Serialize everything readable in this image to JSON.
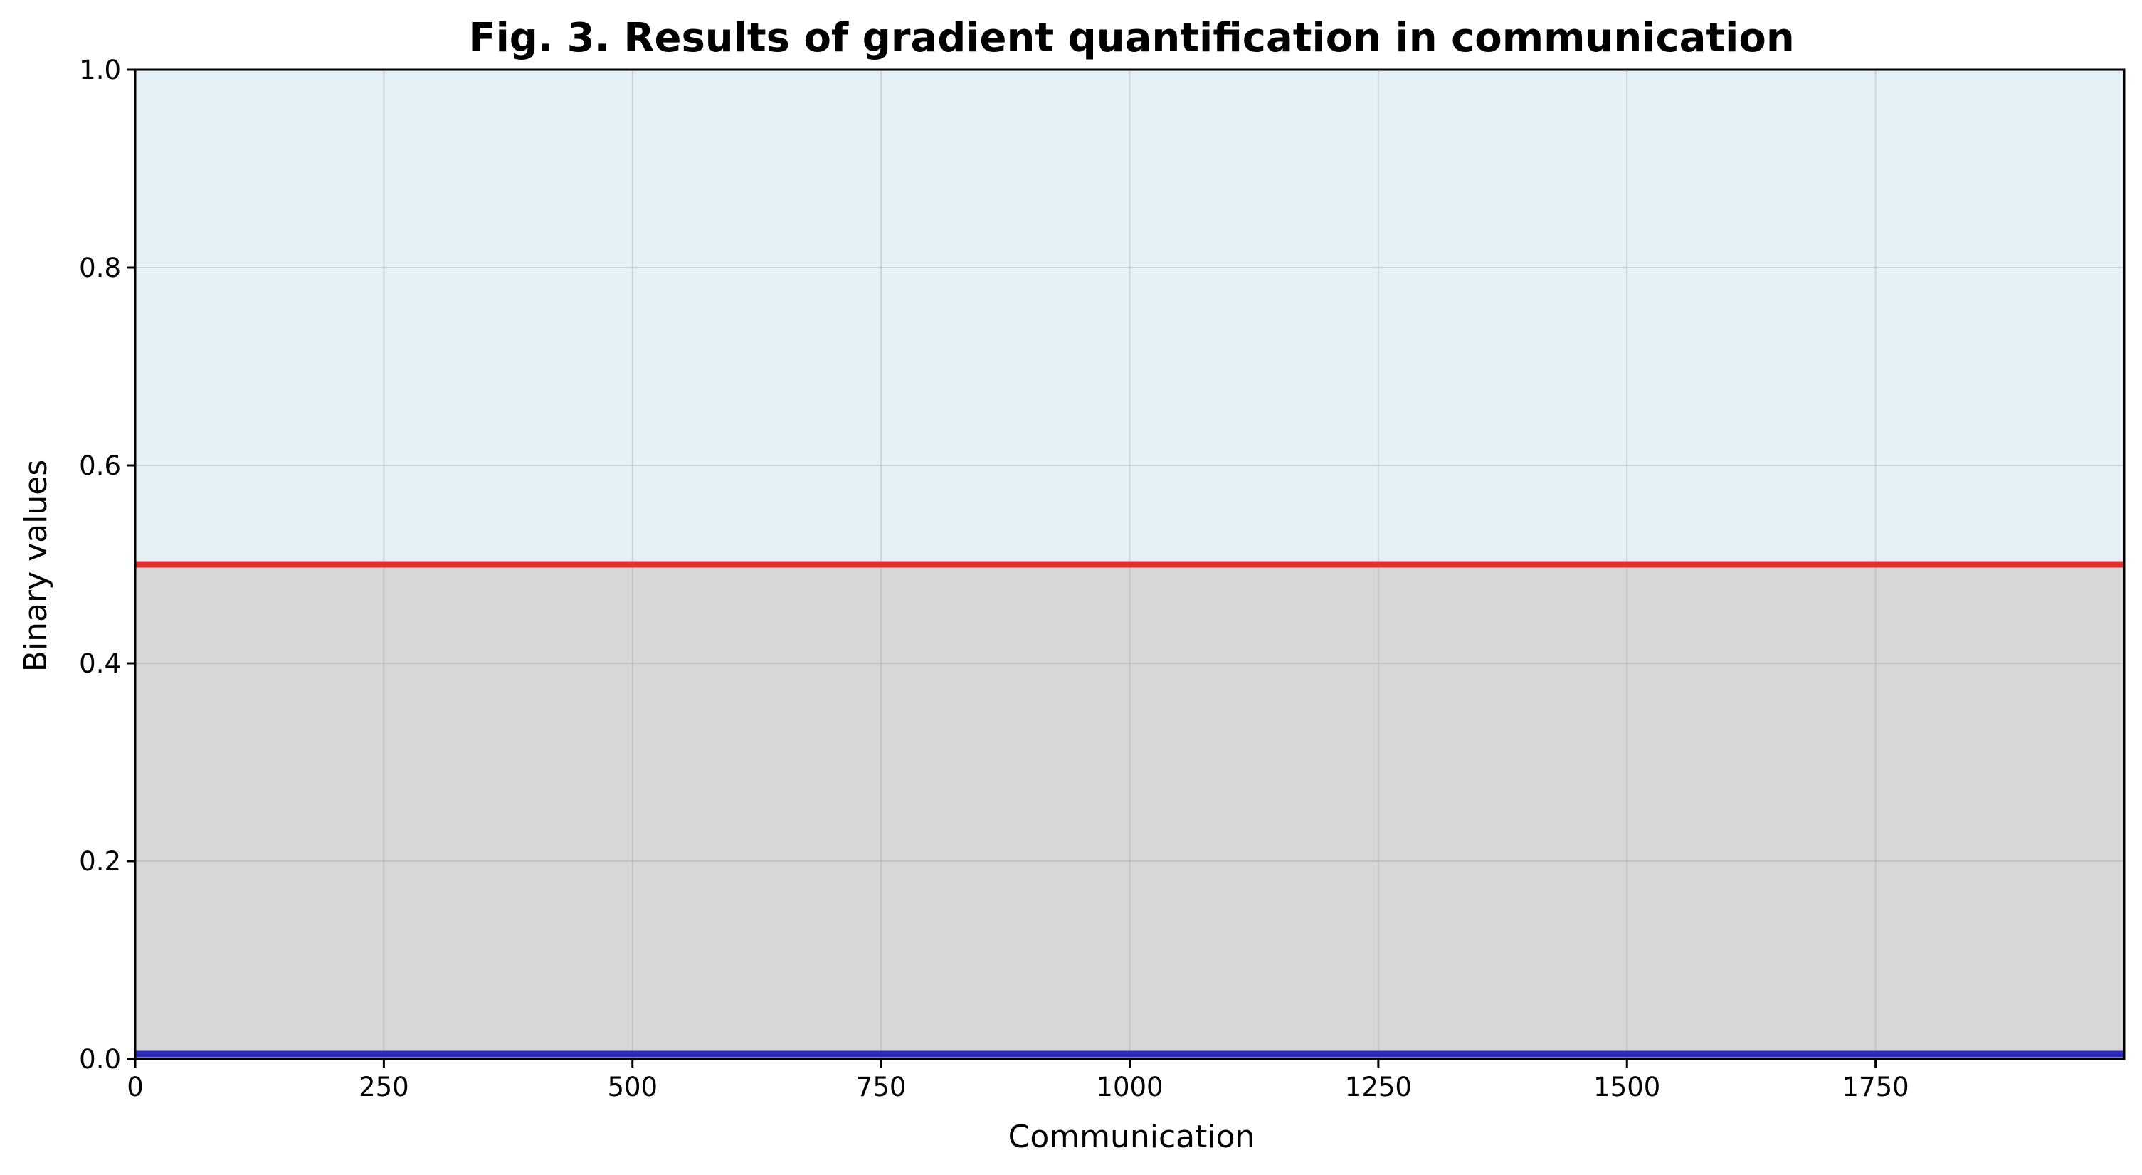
{
  "chart_data": {
    "type": "line",
    "title": "Fig. 3. Results of gradient quantification in communication",
    "xlabel": "Communication",
    "ylabel": "Binary values",
    "xlim": [
      0,
      2000
    ],
    "ylim": [
      0,
      1
    ],
    "x_ticks": [
      0,
      250,
      500,
      750,
      1000,
      1250,
      1500,
      1750
    ],
    "x_tick_labels": [
      "0",
      "250",
      "500",
      "750",
      "1000",
      "1250",
      "1500",
      "1750"
    ],
    "y_ticks": [
      0,
      0.2,
      0.4,
      0.6,
      0.8,
      1.0
    ],
    "y_tick_labels": [
      "0.0",
      "0.2",
      "0.4",
      "0.6",
      "0.8",
      "1.0"
    ],
    "grid": true,
    "regions": [
      {
        "y_from": 0,
        "y_to": 0.5,
        "color": "#d7d7d7"
      },
      {
        "y_from": 0.5,
        "y_to": 1.0,
        "color": "#e4f2f7"
      }
    ],
    "series": [
      {
        "x": [
          0,
          2000
        ],
        "y": [
          0.5,
          0.5
        ],
        "color": "#e03030"
      },
      {
        "x": [
          0,
          2000
        ],
        "y": [
          0.005,
          0.005
        ],
        "color": "#2a2abf"
      }
    ]
  }
}
